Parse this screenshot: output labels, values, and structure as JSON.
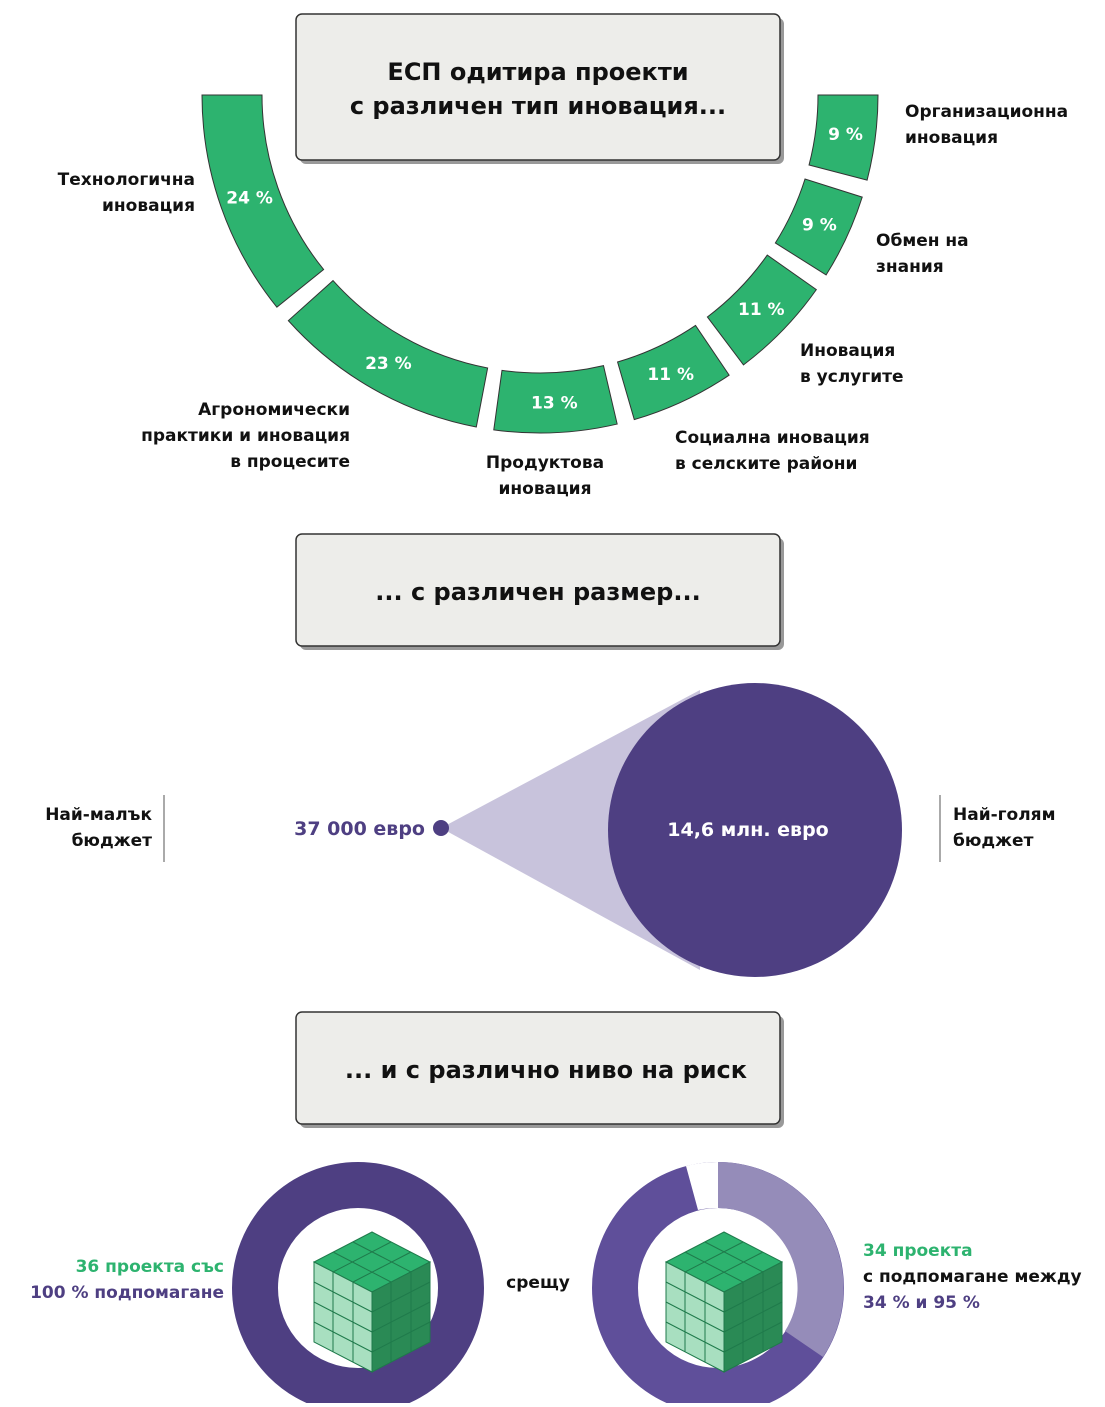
{
  "innovation": {
    "title": [
      "ЕСП одитира проекти",
      "с различен тип иновация..."
    ],
    "segments": [
      {
        "value": 24,
        "label": "24 %",
        "name": [
          "Технологична",
          "иновация"
        ]
      },
      {
        "value": 23,
        "label": "23 %",
        "name": [
          "Агрономически",
          "практики и иновация",
          "в процесите"
        ]
      },
      {
        "value": 13,
        "label": "13 %",
        "name": [
          "Продуктова",
          "иновация"
        ]
      },
      {
        "value": 11,
        "label": "11 %",
        "name": [
          "Социална иновация",
          "в селските райони"
        ]
      },
      {
        "value": 11,
        "label": "11 %",
        "name": [
          "Иновация",
          "в услугите"
        ]
      },
      {
        "value": 9,
        "label": "9 %",
        "name": [
          "Обмен на",
          "знания"
        ]
      },
      {
        "value": 9,
        "label": "9 %",
        "name": [
          "Организационна",
          "иновация"
        ]
      }
    ]
  },
  "size": {
    "title": "... с различен размер...",
    "smallest_label": [
      "Най-малък",
      "бюджет"
    ],
    "smallest_value": "37 000 евро",
    "largest_value": "14,6 млн. евро",
    "largest_label": [
      "Най-голям",
      "бюджет"
    ]
  },
  "risk": {
    "title": "... и с различно ниво на риск",
    "left": [
      "36 проекта със",
      "100 % подпомагане"
    ],
    "versus": "срещу",
    "right": [
      "34 проекта",
      "с подпомагане между",
      "34 % и 95 %"
    ]
  }
}
